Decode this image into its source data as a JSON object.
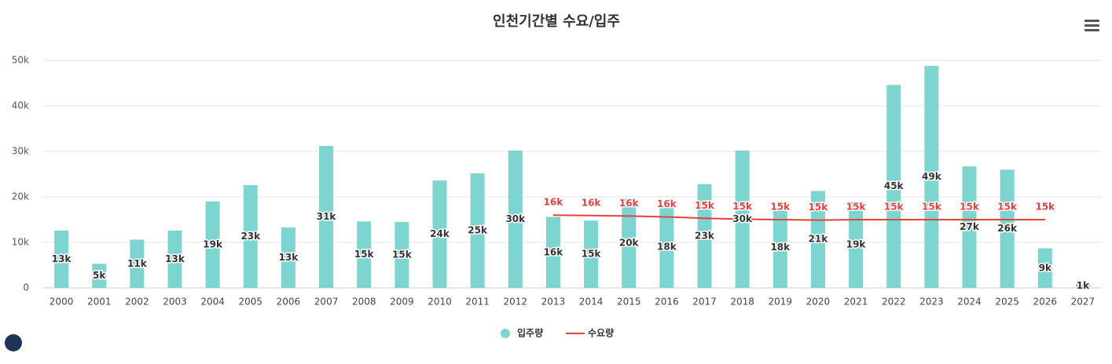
{
  "chart_data": {
    "type": "bar",
    "title": "인천기간별 수요/입주",
    "categories": [
      "2000",
      "2001",
      "2002",
      "2003",
      "2004",
      "2005",
      "2006",
      "2007",
      "2008",
      "2009",
      "2010",
      "2011",
      "2012",
      "2013",
      "2014",
      "2015",
      "2016",
      "2017",
      "2018",
      "2019",
      "2020",
      "2021",
      "2022",
      "2023",
      "2024",
      "2025",
      "2026",
      "2027"
    ],
    "series": [
      {
        "name": "입주량",
        "type": "bar",
        "color": "#7dd5d0",
        "values": [
          12600,
          5300,
          10600,
          12600,
          19000,
          22600,
          13300,
          31200,
          14600,
          14500,
          23600,
          25200,
          30200,
          15600,
          14800,
          19600,
          18000,
          22800,
          30200,
          17700,
          21300,
          19000,
          44600,
          48800,
          26700,
          26000,
          8700,
          900
        ],
        "value_labels": [
          "13k",
          "5k",
          "11k",
          "13k",
          "19k",
          "23k",
          "13k",
          "31k",
          "15k",
          "15k",
          "24k",
          "25k",
          "30k",
          "16k",
          "15k",
          "20k",
          "18k",
          "23k",
          "30k",
          "18k",
          "21k",
          "19k",
          "45k",
          "49k",
          "27k",
          "26k",
          "9k",
          "1k"
        ]
      },
      {
        "name": "수요량",
        "type": "line",
        "color": "#e8403f",
        "values": [
          null,
          null,
          null,
          null,
          null,
          null,
          null,
          null,
          null,
          null,
          null,
          null,
          null,
          16000,
          15900,
          15800,
          15600,
          15300,
          15100,
          15000,
          14900,
          15000,
          15000,
          15000,
          15000,
          15000,
          15000,
          null
        ],
        "value_labels": [
          null,
          null,
          null,
          null,
          null,
          null,
          null,
          null,
          null,
          null,
          null,
          null,
          null,
          "16k",
          "16k",
          "16k",
          "16k",
          "15k",
          "15k",
          "15k",
          "15k",
          "15k",
          "15k",
          "15k",
          "15k",
          "15k",
          "15k",
          null
        ]
      }
    ],
    "ylim": [
      0,
      50000
    ],
    "yticks": [
      0,
      {
        "value": 10000,
        "label": "10k"
      },
      {
        "value": 20000,
        "label": "20k"
      },
      {
        "value": 30000,
        "label": "30k"
      },
      {
        "value": 40000,
        "label": "40k"
      },
      {
        "value": 50000,
        "label": "50k"
      }
    ],
    "grid": true,
    "legend": "bottom"
  }
}
